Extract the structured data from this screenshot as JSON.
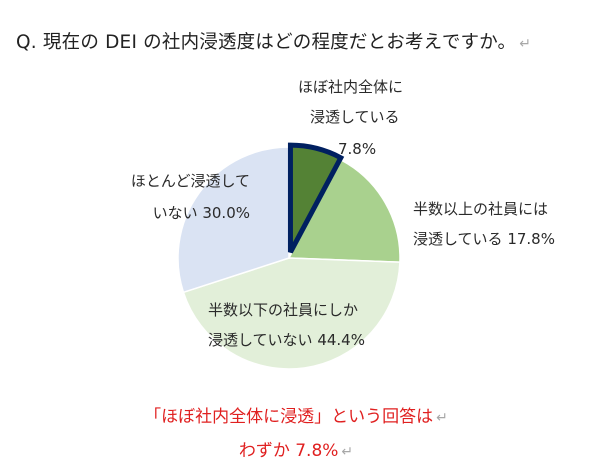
{
  "question": {
    "text": "Q. 現在の DEI の社内浸透度はどの程度だとお考えですか。",
    "return_mark": "↵"
  },
  "chart_data": {
    "type": "pie",
    "title": "",
    "categories": [
      "ほぼ社内全体に浸透している",
      "半数以上の社員には浸透している",
      "半数以下の社員にしか浸透していない",
      "ほとんど浸透していない"
    ],
    "values": [
      7.8,
      17.8,
      44.4,
      30.0
    ],
    "value_labels": [
      "7.8%",
      "17.8%",
      "44.4%",
      "30.0%"
    ],
    "label_lines": [
      [
        "ほぼ社内全体に",
        "浸透している",
        "7.8%"
      ],
      [
        "半数以上の社員には",
        "浸透している 17.8%"
      ],
      [
        "半数以下の社員にしか",
        "浸透していない 44.4%"
      ],
      [
        "ほとんど浸透して",
        "いない 30.0%"
      ]
    ],
    "colors": [
      "#548235",
      "#a9d18e",
      "#e2efd9",
      "#dae3f3"
    ],
    "highlight_index": 0,
    "highlight_color": "#002060",
    "start_angle_deg": 0,
    "direction": "clockwise"
  },
  "conclusion": {
    "line1": "「ほぼ社内全体に浸透」という回答は",
    "line2": "わずか 7.8%",
    "color": "#e02020"
  }
}
